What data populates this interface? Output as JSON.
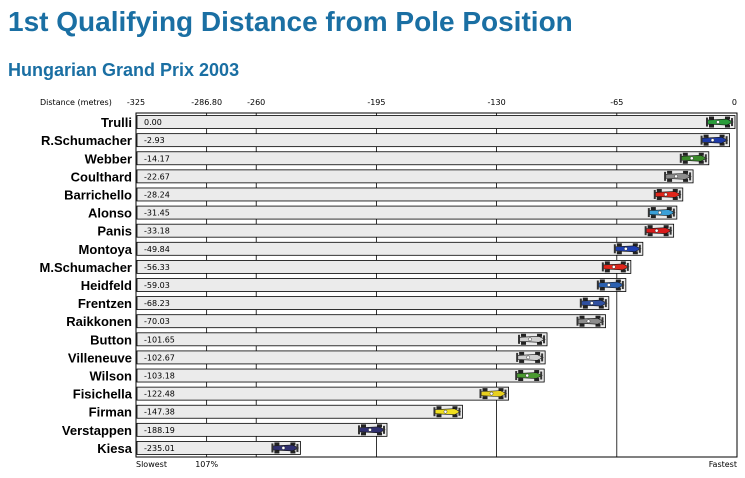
{
  "header": {
    "title": "1st Qualifying Distance from Pole Position",
    "subtitle": "Hungarian Grand Prix 2003"
  },
  "chart_data": {
    "type": "bar",
    "title": "1st Qualifying Distance from Pole Position",
    "subtitle": "Hungarian Grand Prix 2003",
    "xlabel": "Distance (metres)",
    "xlim": [
      -325,
      0
    ],
    "xticks": [
      {
        "value": -325,
        "label": "-325"
      },
      {
        "value": -286.8,
        "label": "-286.80"
      },
      {
        "value": -260,
        "label": "-260"
      },
      {
        "value": -195,
        "label": "-195"
      },
      {
        "value": -130,
        "label": "-130"
      },
      {
        "value": -65,
        "label": "-65"
      },
      {
        "value": 0,
        "label": "0"
      }
    ],
    "bottom_labels": {
      "left": "Slowest",
      "threshold": "107%",
      "right": "Fastest"
    },
    "threshold_value": -286.8,
    "categories": [
      "Trulli",
      "R.Schumacher",
      "Webber",
      "Coulthard",
      "Barrichello",
      "Alonso",
      "Panis",
      "Montoya",
      "M.Schumacher",
      "Heidfeld",
      "Frentzen",
      "Raikkonen",
      "Button",
      "Villeneuve",
      "Wilson",
      "Fisichella",
      "Firman",
      "Verstappen",
      "Kiesa"
    ],
    "values": [
      0.0,
      -2.93,
      -14.17,
      -22.67,
      -28.24,
      -31.45,
      -33.18,
      -49.84,
      -56.33,
      -59.03,
      -68.23,
      -70.03,
      -101.65,
      -102.67,
      -103.18,
      -122.48,
      -147.38,
      -188.19,
      -235.01
    ],
    "value_labels": [
      "0.00",
      "-2.93",
      "-14.17",
      "-22.67",
      "-28.24",
      "-31.45",
      "-33.18",
      "-49.84",
      "-56.33",
      "-59.03",
      "-68.23",
      "-70.03",
      "-101.65",
      "-102.67",
      "-103.18",
      "-122.48",
      "-147.38",
      "-188.19",
      "-235.01"
    ],
    "car_colors": [
      "#2a9d3a",
      "#1d3aa8",
      "#3a8a2a",
      "#8c8c8c",
      "#e0261b",
      "#3aa0d8",
      "#d81b1b",
      "#2040b0",
      "#e0261b",
      "#2a60b0",
      "#3050a0",
      "#8c8c8c",
      "#d0d0d0",
      "#d0d0d0",
      "#4a9a30",
      "#e8d020",
      "#f0e020",
      "#303070",
      "#303070"
    ],
    "grid": true
  }
}
